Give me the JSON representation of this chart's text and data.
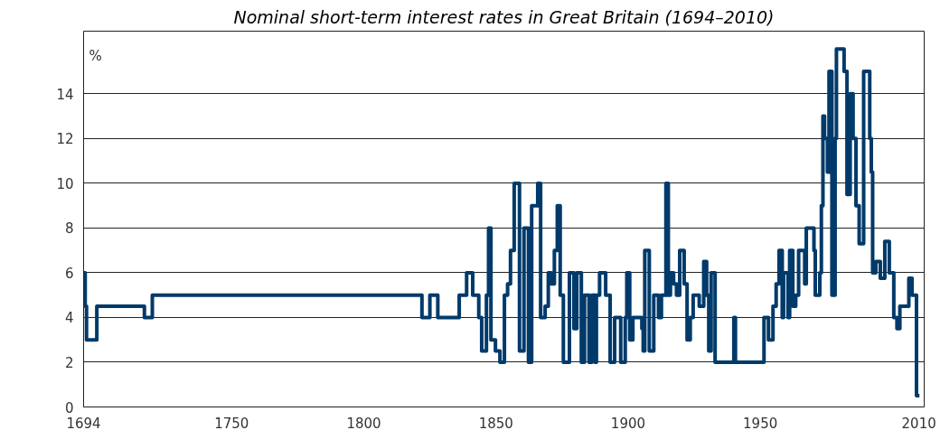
{
  "chart_data": {
    "type": "step",
    "title": "Nominal short-term interest rates in Great Britain (1694–2010)",
    "ylabel": "%",
    "xlim": [
      1694,
      2012
    ],
    "xticks": [
      1694,
      1750,
      1800,
      1850,
      1900,
      1950,
      2010
    ],
    "ylim": [
      0,
      16.8
    ],
    "yticks": [
      0,
      2,
      4,
      6,
      8,
      10,
      12,
      14
    ],
    "grid": "y",
    "marker": "none",
    "line_style": "solid",
    "series": [
      {
        "color": "#003a6a",
        "x": [
          1694,
          1694.6,
          1695.1,
          1699,
          1717,
          1720,
          1822,
          1825,
          1828,
          1836.1,
          1838.9,
          1841.2,
          1843.5,
          1844.6,
          1846.4,
          1847.2,
          1848.1,
          1849.8,
          1851.5,
          1853.2,
          1854.4,
          1855.5,
          1856.9,
          1858.9,
          1860.6,
          1862.3,
          1863.5,
          1865.8,
          1866.9,
          1868.6,
          1869.8,
          1870.9,
          1872.1,
          1873.2,
          1874.3,
          1875.5,
          1877.8,
          1879.5,
          1880.6,
          1882.3,
          1883.5,
          1885.2,
          1886.3,
          1887.5,
          1888,
          1889.2,
          1891.5,
          1893.2,
          1894.9,
          1896,
          1897.2,
          1898.9,
          1899.5,
          1900.6,
          1901.8,
          1905.2,
          1905.7,
          1906.3,
          1908,
          1909.7,
          1911.5,
          1912.6,
          1914.3,
          1915.2,
          1916,
          1917.2,
          1918.3,
          1919.5,
          1921.2,
          1922.3,
          1923.5,
          1924.6,
          1926.9,
          1928.6,
          1929.7,
          1930.5,
          1931.4,
          1932.9,
          1940,
          1940.6,
          1951.4,
          1953.1,
          1954.8,
          1956,
          1957.1,
          1958.3,
          1958.8,
          1960.5,
          1961.1,
          1962.3,
          1963.4,
          1964.5,
          1966.8,
          1967.4,
          1970.3,
          1970.8,
          1972.5,
          1973.1,
          1973.7,
          1974.3,
          1975.4,
          1976,
          1977.1,
          1978.3,
          1978.8,
          1981.7,
          1982.8,
          1984,
          1985.1,
          1986.2,
          1987.4,
          1989.1,
          1991.4,
          1992,
          1992.5,
          1993.7,
          1995.4,
          1997.1,
          1998.8,
          2000.5,
          2001.7,
          2002.8,
          2006.2,
          2007.4,
          2009.1,
          2010.2
        ],
        "values": [
          6,
          4.5,
          3,
          4.5,
          4,
          5,
          4,
          5,
          4,
          5,
          6,
          5,
          4,
          2.5,
          5,
          8,
          3,
          2.5,
          2,
          5,
          5.5,
          7,
          10,
          2.5,
          8,
          2,
          9,
          10,
          4,
          4.5,
          6,
          5.5,
          7,
          9,
          5,
          2,
          6,
          3.5,
          6,
          2,
          5,
          2,
          5,
          2,
          5,
          6,
          5,
          2,
          4,
          4,
          2,
          4,
          6,
          3,
          4,
          3.5,
          2.5,
          7,
          2.5,
          5,
          4,
          5,
          10,
          5,
          6,
          5.5,
          5,
          7,
          5.5,
          3,
          4,
          5,
          4.5,
          6.5,
          5,
          2.5,
          6,
          2,
          4,
          2,
          4,
          3,
          4.5,
          5.5,
          7,
          4,
          6,
          4,
          7,
          4.5,
          5,
          7,
          5.5,
          8,
          7,
          5,
          6,
          9,
          13,
          12,
          10.5,
          15,
          5,
          12,
          16,
          15,
          9.5,
          14,
          12,
          9,
          7.3,
          15,
          12,
          10.5,
          6,
          6.5,
          5.75,
          7.4,
          6,
          4,
          3.5,
          4.5,
          5.75,
          5,
          0.5,
          0.5
        ]
      }
    ]
  }
}
